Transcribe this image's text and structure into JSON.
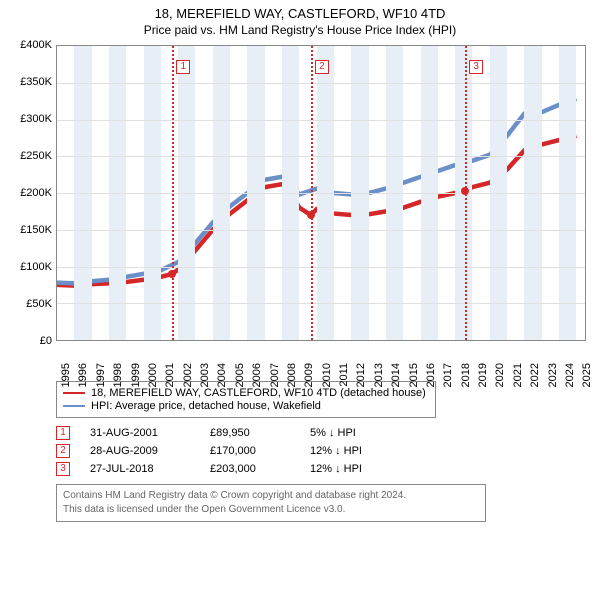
{
  "title": {
    "line1": "18, MEREFIELD WAY, CASTLEFORD, WF10 4TD",
    "line2": "Price paid vs. HM Land Registry's House Price Index (HPI)"
  },
  "chart": {
    "type": "line",
    "background_color": "#ffffff",
    "band_color": "#e8eef5",
    "grid_color": "#e0e0e0",
    "axis_color": "#888888",
    "x_start": 1995,
    "x_end": 2025.5,
    "xticks": [
      1995,
      1996,
      1997,
      1998,
      1999,
      2000,
      2001,
      2002,
      2003,
      2004,
      2005,
      2006,
      2007,
      2008,
      2009,
      2010,
      2011,
      2012,
      2013,
      2014,
      2015,
      2016,
      2017,
      2018,
      2019,
      2020,
      2021,
      2022,
      2023,
      2024,
      2025
    ],
    "ylim": [
      0,
      400000
    ],
    "ytick_step": 50000,
    "yticks": [
      {
        "v": 0,
        "label": "£0"
      },
      {
        "v": 50000,
        "label": "£50K"
      },
      {
        "v": 100000,
        "label": "£100K"
      },
      {
        "v": 150000,
        "label": "£150K"
      },
      {
        "v": 200000,
        "label": "£200K"
      },
      {
        "v": 250000,
        "label": "£250K"
      },
      {
        "v": 300000,
        "label": "£300K"
      },
      {
        "v": 350000,
        "label": "£350K"
      },
      {
        "v": 400000,
        "label": "£400K"
      }
    ],
    "series": [
      {
        "name": "property",
        "color": "#d62728",
        "width": 1.5,
        "points": [
          [
            1995,
            75000
          ],
          [
            1996,
            74000
          ],
          [
            1997,
            76000
          ],
          [
            1998,
            77000
          ],
          [
            1999,
            79000
          ],
          [
            2000,
            82000
          ],
          [
            2001,
            86000
          ],
          [
            2001.66,
            89950
          ],
          [
            2002,
            96000
          ],
          [
            2003,
            122000
          ],
          [
            2004,
            150000
          ],
          [
            2005,
            172000
          ],
          [
            2006,
            190000
          ],
          [
            2007,
            208000
          ],
          [
            2008,
            212000
          ],
          [
            2008.5,
            200000
          ],
          [
            2009,
            180000
          ],
          [
            2009.66,
            170000
          ],
          [
            2010,
            178000
          ],
          [
            2011,
            172000
          ],
          [
            2012,
            170000
          ],
          [
            2013,
            171000
          ],
          [
            2014,
            175000
          ],
          [
            2015,
            180000
          ],
          [
            2016,
            188000
          ],
          [
            2017,
            195000
          ],
          [
            2018,
            200000
          ],
          [
            2018.58,
            203000
          ],
          [
            2019,
            208000
          ],
          [
            2020,
            214000
          ],
          [
            2021,
            232000
          ],
          [
            2022,
            258000
          ],
          [
            2023,
            266000
          ],
          [
            2024,
            272000
          ],
          [
            2025,
            278000
          ]
        ]
      },
      {
        "name": "hpi",
        "color": "#6b8fc9",
        "width": 1.5,
        "points": [
          [
            1995,
            78000
          ],
          [
            1996,
            77000
          ],
          [
            1997,
            80000
          ],
          [
            1998,
            82000
          ],
          [
            1999,
            86000
          ],
          [
            2000,
            90000
          ],
          [
            2001,
            95000
          ],
          [
            2002,
            106000
          ],
          [
            2003,
            132000
          ],
          [
            2004,
            160000
          ],
          [
            2005,
            182000
          ],
          [
            2006,
            200000
          ],
          [
            2007,
            218000
          ],
          [
            2008,
            222000
          ],
          [
            2008.5,
            212000
          ],
          [
            2009,
            198000
          ],
          [
            2009.5,
            202000
          ],
          [
            2010,
            206000
          ],
          [
            2011,
            200000
          ],
          [
            2012,
            198000
          ],
          [
            2013,
            200000
          ],
          [
            2014,
            206000
          ],
          [
            2015,
            214000
          ],
          [
            2016,
            222000
          ],
          [
            2017,
            230000
          ],
          [
            2018,
            238000
          ],
          [
            2019,
            244000
          ],
          [
            2020,
            252000
          ],
          [
            2021,
            278000
          ],
          [
            2022,
            308000
          ],
          [
            2023,
            310000
          ],
          [
            2024,
            320000
          ],
          [
            2025,
            328000
          ]
        ]
      }
    ],
    "sale_markers": [
      {
        "n": "1",
        "x": 2001.66,
        "y": 89950,
        "color": "#d62728"
      },
      {
        "n": "2",
        "x": 2009.66,
        "y": 170000,
        "color": "#d62728"
      },
      {
        "n": "3",
        "x": 2018.58,
        "y": 203000,
        "color": "#d62728"
      }
    ],
    "label_fontsize": 11,
    "title_fontsize": 13
  },
  "legend": {
    "items": [
      {
        "color": "#d62728",
        "label": "18, MEREFIELD WAY, CASTLEFORD, WF10 4TD (detached house)"
      },
      {
        "color": "#6b8fc9",
        "label": "HPI: Average price, detached house, Wakefield"
      }
    ]
  },
  "sales": [
    {
      "n": "1",
      "color": "#d62728",
      "date": "31-AUG-2001",
      "price": "£89,950",
      "delta": "5% ↓ HPI"
    },
    {
      "n": "2",
      "color": "#d62728",
      "date": "28-AUG-2009",
      "price": "£170,000",
      "delta": "12% ↓ HPI"
    },
    {
      "n": "3",
      "color": "#d62728",
      "date": "27-JUL-2018",
      "price": "£203,000",
      "delta": "12% ↓ HPI"
    }
  ],
  "attribution": {
    "line1": "Contains HM Land Registry data © Crown copyright and database right 2024.",
    "line2": "This data is licensed under the Open Government Licence v3.0."
  }
}
